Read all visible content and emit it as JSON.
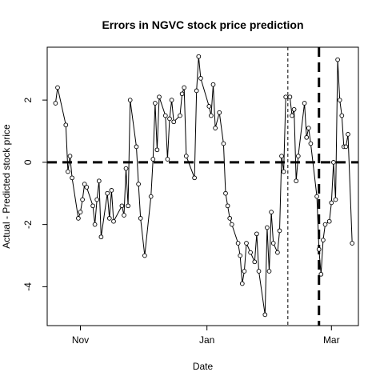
{
  "chart_data": {
    "type": "line",
    "title": "Errors in NGVC stock price prediction",
    "xlabel": "Date",
    "ylabel": "Actual - Predicted stock price",
    "x_ticks": [
      {
        "label": "Nov",
        "date": "2015-11-01"
      },
      {
        "label": "Jan",
        "date": "2016-01-01"
      },
      {
        "label": "Mar",
        "date": "2016-03-01"
      }
    ],
    "y_ticks": [
      -4,
      -2,
      0,
      2
    ],
    "xlim": [
      "2015-10-16",
      "2016-03-14"
    ],
    "ylim": [
      -5.25,
      3.7
    ],
    "grid": false,
    "legend": "none",
    "marker": "open-circle",
    "line_color": "#000000",
    "series": [
      {
        "points": [
          [
            "2015-10-20",
            1.9
          ],
          [
            "2015-10-21",
            2.4
          ],
          [
            "2015-10-25",
            1.2
          ],
          [
            "2015-10-26",
            -0.3
          ],
          [
            "2015-10-27",
            0.2
          ],
          [
            "2015-10-28",
            -0.5
          ],
          [
            "2015-10-31",
            -1.8
          ],
          [
            "2015-11-01",
            -1.6
          ],
          [
            "2015-11-02",
            -1.2
          ],
          [
            "2015-11-03",
            -0.7
          ],
          [
            "2015-11-04",
            -0.8
          ],
          [
            "2015-11-07",
            -1.4
          ],
          [
            "2015-11-08",
            -2.0
          ],
          [
            "2015-11-09",
            -1.2
          ],
          [
            "2015-11-10",
            -0.6
          ],
          [
            "2015-11-11",
            -2.4
          ],
          [
            "2015-11-14",
            -1.0
          ],
          [
            "2015-11-15",
            -1.8
          ],
          [
            "2015-11-16",
            -0.9
          ],
          [
            "2015-11-17",
            -1.9
          ],
          [
            "2015-11-21",
            -1.4
          ],
          [
            "2015-11-22",
            -1.7
          ],
          [
            "2015-11-23",
            -0.2
          ],
          [
            "2015-11-24",
            -1.4
          ],
          [
            "2015-11-25",
            2.0
          ],
          [
            "2015-11-28",
            0.5
          ],
          [
            "2015-11-29",
            -0.7
          ],
          [
            "2015-11-30",
            -1.8
          ],
          [
            "2015-12-02",
            -3.0
          ],
          [
            "2015-12-05",
            -1.1
          ],
          [
            "2015-12-06",
            0.1
          ],
          [
            "2015-12-07",
            1.9
          ],
          [
            "2015-12-08",
            0.4
          ],
          [
            "2015-12-09",
            2.1
          ],
          [
            "2015-12-12",
            1.5
          ],
          [
            "2015-12-13",
            0.1
          ],
          [
            "2015-12-14",
            1.4
          ],
          [
            "2015-12-15",
            2.0
          ],
          [
            "2015-12-16",
            1.3
          ],
          [
            "2015-12-19",
            1.5
          ],
          [
            "2015-12-20",
            2.2
          ],
          [
            "2015-12-21",
            2.4
          ],
          [
            "2015-12-22",
            0.2
          ],
          [
            "2015-12-26",
            -0.5
          ],
          [
            "2015-12-27",
            2.3
          ],
          [
            "2015-12-28",
            3.4
          ],
          [
            "2015-12-29",
            2.7
          ],
          [
            "2016-01-02",
            1.8
          ],
          [
            "2016-01-03",
            1.5
          ],
          [
            "2016-01-04",
            2.5
          ],
          [
            "2016-01-05",
            1.1
          ],
          [
            "2016-01-07",
            1.6
          ],
          [
            "2016-01-09",
            0.6
          ],
          [
            "2016-01-10",
            -1.0
          ],
          [
            "2016-01-11",
            -1.4
          ],
          [
            "2016-01-12",
            -1.8
          ],
          [
            "2016-01-13",
            -2.0
          ],
          [
            "2016-01-16",
            -2.6
          ],
          [
            "2016-01-17",
            -3.0
          ],
          [
            "2016-01-18",
            -3.9
          ],
          [
            "2016-01-19",
            -3.5
          ],
          [
            "2016-01-20",
            -2.6
          ],
          [
            "2016-01-22",
            -2.9
          ],
          [
            "2016-01-24",
            -3.2
          ],
          [
            "2016-01-25",
            -2.3
          ],
          [
            "2016-01-26",
            -3.5
          ],
          [
            "2016-01-29",
            -4.9
          ],
          [
            "2016-01-30",
            -2.1
          ],
          [
            "2016-01-31",
            -3.5
          ],
          [
            "2016-02-01",
            -1.6
          ],
          [
            "2016-02-02",
            -2.6
          ],
          [
            "2016-02-04",
            -2.9
          ],
          [
            "2016-02-05",
            -2.2
          ],
          [
            "2016-02-06",
            0.2
          ],
          [
            "2016-02-07",
            -0.3
          ],
          [
            "2016-02-08",
            2.1
          ],
          [
            "2016-02-10",
            2.1
          ],
          [
            "2016-02-11",
            1.5
          ],
          [
            "2016-02-12",
            1.7
          ],
          [
            "2016-02-13",
            -0.6
          ],
          [
            "2016-02-14",
            0.2
          ],
          [
            "2016-02-17",
            1.9
          ],
          [
            "2016-02-18",
            0.8
          ],
          [
            "2016-02-19",
            1.1
          ],
          [
            "2016-02-20",
            0.6
          ],
          [
            "2016-02-23",
            -1.1
          ],
          [
            "2016-02-24",
            -2.8
          ],
          [
            "2016-02-25",
            -3.6
          ],
          [
            "2016-02-26",
            -2.5
          ],
          [
            "2016-02-27",
            -2.0
          ],
          [
            "2016-02-29",
            -1.9
          ],
          [
            "2016-03-01",
            -1.3
          ],
          [
            "2016-03-02",
            0.0
          ],
          [
            "2016-03-03",
            -1.2
          ],
          [
            "2016-03-04",
            3.3
          ],
          [
            "2016-03-05",
            2.0
          ],
          [
            "2016-03-06",
            1.5
          ],
          [
            "2016-03-07",
            0.5
          ],
          [
            "2016-03-08",
            0.5
          ],
          [
            "2016-03-09",
            0.9
          ],
          [
            "2016-03-11",
            -2.6
          ]
        ]
      }
    ],
    "reference_lines": [
      {
        "axis": "y",
        "value": 0,
        "style": "thick-dashed"
      },
      {
        "axis": "x",
        "value": "2016-02-09",
        "style": "thin-dashed"
      },
      {
        "axis": "x",
        "value": "2016-02-24",
        "style": "thick-dashed"
      }
    ]
  }
}
